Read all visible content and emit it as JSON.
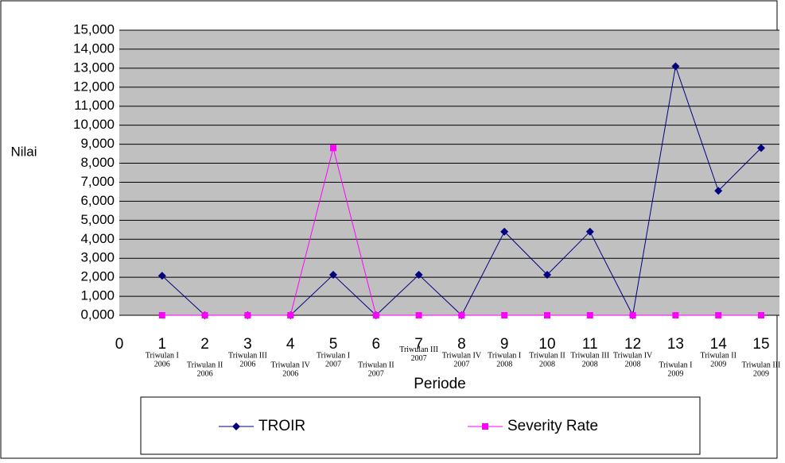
{
  "chart_data": {
    "type": "line",
    "x_label": "Periode",
    "y_label": "Nilai",
    "x": [
      1,
      2,
      3,
      4,
      5,
      6,
      7,
      8,
      9,
      10,
      11,
      12,
      13,
      14,
      15
    ],
    "series": [
      {
        "name": "TROIR",
        "color": "#000080",
        "marker": "diamond",
        "values": [
          2.08,
          0,
          0,
          0,
          2.13,
          0,
          2.13,
          0,
          4.4,
          2.13,
          4.4,
          0,
          13.1,
          6.55,
          8.8
        ]
      },
      {
        "name": "Severity Rate",
        "color": "#ff00ff",
        "marker": "square",
        "values": [
          0,
          0,
          0,
          0,
          8.8,
          0,
          0,
          0,
          0,
          0,
          0,
          0,
          0,
          0,
          0
        ]
      }
    ],
    "period_labels": [
      [
        "Triwulan I",
        "2006"
      ],
      [
        "Triwulan II",
        "2006"
      ],
      [
        "Triwulan III",
        "2006"
      ],
      [
        "Triwulan IV",
        "2006"
      ],
      [
        "Triwulan I",
        "2007"
      ],
      [
        "Triwulan II",
        "2007"
      ],
      [
        "Triwulan III",
        "2007"
      ],
      [
        "Triwulan IV",
        "2007"
      ],
      [
        "Triwulan I",
        "2008"
      ],
      [
        "Triwulan II",
        "2008"
      ],
      [
        "Triwulan III",
        "2008"
      ],
      [
        "Triwulan IV",
        "2008"
      ],
      [
        "Triwulan I",
        "2009"
      ],
      [
        "Triwulan II",
        "2009"
      ],
      [
        "Triwulan III",
        "2009"
      ]
    ],
    "xlim": [
      0,
      15
    ],
    "xticks": [
      0,
      1,
      2,
      3,
      4,
      5,
      6,
      7,
      8,
      9,
      10,
      11,
      12,
      13,
      14,
      15
    ],
    "ylim": [
      0,
      15
    ],
    "yticks": [
      {
        "value": 0,
        "label": "0,000"
      },
      {
        "value": 1,
        "label": "1,000"
      },
      {
        "value": 2,
        "label": "2,000"
      },
      {
        "value": 3,
        "label": "3,000"
      },
      {
        "value": 4,
        "label": "4,000"
      },
      {
        "value": 5,
        "label": "5,000"
      },
      {
        "value": 6,
        "label": "6,000"
      },
      {
        "value": 7,
        "label": "7,000"
      },
      {
        "value": 8,
        "label": "8,000"
      },
      {
        "value": 9,
        "label": "9,000"
      },
      {
        "value": 10,
        "label": "10,000"
      },
      {
        "value": 11,
        "label": "11,000"
      },
      {
        "value": 12,
        "label": "12,000"
      },
      {
        "value": 13,
        "label": "13,000"
      },
      {
        "value": 14,
        "label": "14,000"
      },
      {
        "value": 15,
        "label": "15,000"
      }
    ],
    "grid": true,
    "legend": "bottom"
  }
}
